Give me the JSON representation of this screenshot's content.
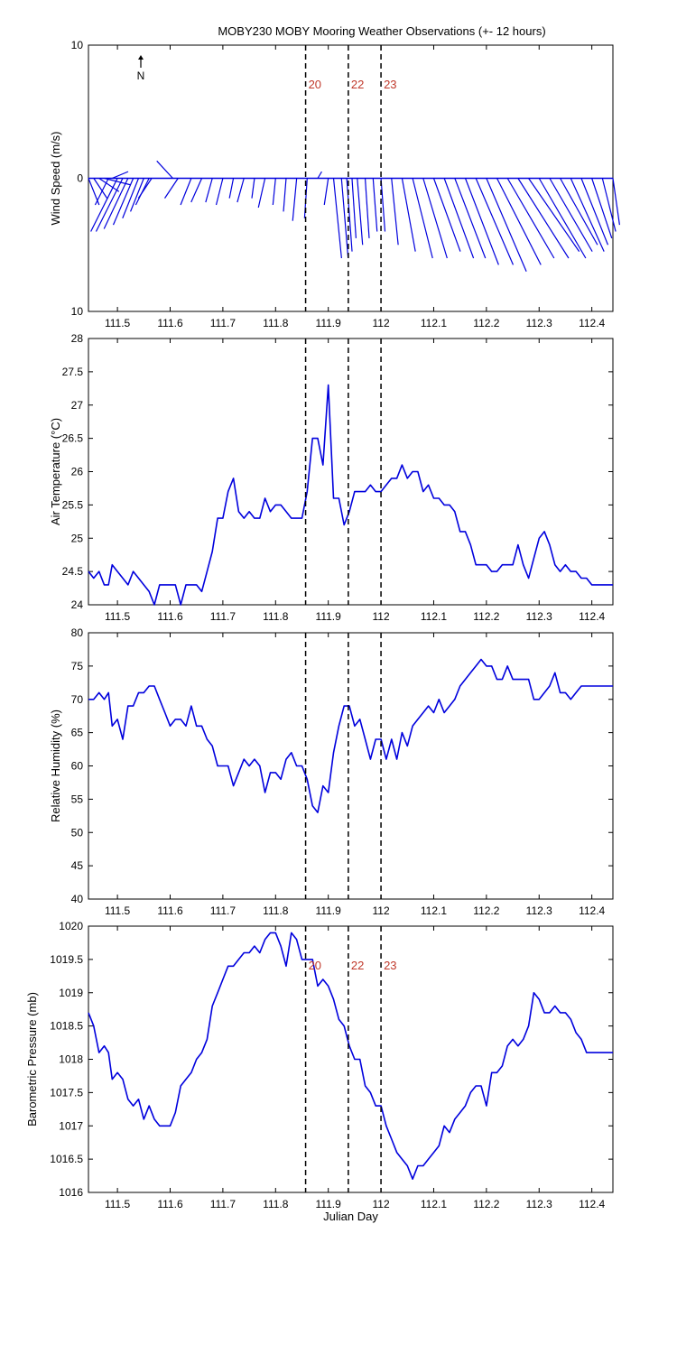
{
  "chart_data": [
    {
      "type": "line",
      "subtype": "wind-barb",
      "title": "MOBY230 MOBY Mooring Weather Observations (+- 12 hours)",
      "north_indicator": "N",
      "ylabel": "Wind Speed (m/s)",
      "ylim": [
        -10,
        10
      ],
      "ytick_labels": [
        "10",
        "0",
        "10"
      ],
      "xlim": [
        111.445,
        112.44
      ],
      "xticks": [
        111.5,
        111.6,
        111.7,
        111.8,
        111.9,
        112,
        112.1,
        112.2,
        112.3,
        112.4
      ],
      "xtick_labels": [
        "111.5",
        "111.6",
        "111.7",
        "111.8",
        "111.9",
        "112",
        "112.1",
        "112.2",
        "112.3",
        "112.4"
      ],
      "vlines": [
        111.857,
        111.938,
        112.0
      ],
      "vline_labels": [
        "20",
        "22",
        "23"
      ],
      "vectors": {
        "x": [
          111.445,
          111.455,
          111.465,
          111.475,
          111.483,
          111.49,
          111.5,
          111.51,
          111.52,
          111.53,
          111.54,
          111.55,
          111.56,
          111.565,
          111.605,
          111.615,
          111.64,
          111.66,
          111.68,
          111.7,
          111.72,
          111.74,
          111.76,
          111.78,
          111.8,
          111.82,
          111.84,
          111.86,
          111.88,
          111.9,
          111.91,
          111.925,
          111.935,
          111.945,
          111.955,
          111.97,
          111.985,
          112.0,
          112.02,
          112.04,
          112.06,
          112.08,
          112.1,
          112.12,
          112.14,
          112.16,
          112.18,
          112.2,
          112.22,
          112.24,
          112.26,
          112.28,
          112.3,
          112.32,
          112.34,
          112.36,
          112.38,
          112.4,
          112.42,
          112.44
        ],
        "u": [
          0.8,
          1.0,
          1.5,
          2.0,
          -1.0,
          1.2,
          -2.0,
          -2.0,
          -1.8,
          -1.5,
          -1.2,
          -1.0,
          -1.0,
          -1.0,
          -1.2,
          -1.0,
          -0.8,
          -0.8,
          -0.5,
          -0.5,
          -0.3,
          -0.5,
          -0.2,
          -0.5,
          -0.2,
          -0.2,
          -0.3,
          -0.2,
          0.3,
          -0.3,
          0.6,
          0.5,
          0.4,
          0.3,
          0.4,
          0.3,
          0.3,
          0.3,
          0.5,
          1.0,
          1.5,
          1.8,
          2.0,
          2.2,
          2.3,
          2.5,
          2.8,
          3.0,
          3.3,
          3.5,
          3.8,
          3.8,
          3.5,
          3.2,
          2.8,
          2.5,
          2.0,
          1.5,
          1.0,
          0.5
        ],
        "v": [
          -2.0,
          -1.5,
          -1.0,
          -0.5,
          -2.0,
          0.5,
          -4.0,
          -4.0,
          -3.8,
          -3.5,
          -3.0,
          -2.5,
          -2.0,
          -1.5,
          1.3,
          -1.5,
          -2.0,
          -1.8,
          -1.8,
          -2.0,
          -1.5,
          -1.8,
          -1.5,
          -2.2,
          -2.0,
          -2.5,
          -3.2,
          -3.0,
          0.5,
          -2.0,
          -6.0,
          -6.0,
          -5.5,
          -4.5,
          -5.0,
          -4.5,
          -4.0,
          -4.0,
          -5.0,
          -5.5,
          -6.0,
          -6.0,
          -5.5,
          -6.0,
          -6.0,
          -6.5,
          -6.5,
          -7.0,
          -6.5,
          -6.0,
          -6.0,
          -5.5,
          -6.0,
          -5.5,
          -5.0,
          -5.5,
          -5.0,
          -4.5,
          -4.0,
          -3.5
        ]
      }
    },
    {
      "type": "line",
      "ylabel": "Air Temperature (°C)",
      "ylim": [
        24,
        28
      ],
      "yticks": [
        24,
        24.5,
        25,
        25.5,
        26,
        26.5,
        27,
        27.5,
        28
      ],
      "ytick_labels": [
        "24",
        "24.5",
        "25",
        "25.5",
        "26",
        "26.5",
        "27",
        "27.5",
        "28"
      ],
      "xlim": [
        111.445,
        112.44
      ],
      "xticks": [
        111.5,
        111.6,
        111.7,
        111.8,
        111.9,
        112,
        112.1,
        112.2,
        112.3,
        112.4
      ],
      "xtick_labels": [
        "111.5",
        "111.6",
        "111.7",
        "111.8",
        "111.9",
        "112",
        "112.1",
        "112.2",
        "112.3",
        "112.4"
      ],
      "vlines": [
        111.857,
        111.938,
        112.0
      ],
      "series": [
        {
          "color": "#0000dd",
          "x": [
            111.445,
            111.455,
            111.465,
            111.475,
            111.483,
            111.49,
            111.5,
            111.51,
            111.52,
            111.53,
            111.54,
            111.55,
            111.56,
            111.57,
            111.58,
            111.59,
            111.6,
            111.61,
            111.62,
            111.63,
            111.64,
            111.65,
            111.66,
            111.67,
            111.68,
            111.69,
            111.7,
            111.71,
            111.72,
            111.73,
            111.74,
            111.75,
            111.76,
            111.77,
            111.78,
            111.79,
            111.8,
            111.81,
            111.82,
            111.83,
            111.84,
            111.85,
            111.86,
            111.87,
            111.88,
            111.89,
            111.9,
            111.91,
            111.915,
            111.92,
            111.93,
            111.94,
            111.95,
            111.96,
            111.97,
            111.98,
            111.99,
            112.0,
            112.01,
            112.02,
            112.03,
            112.04,
            112.05,
            112.06,
            112.07,
            112.08,
            112.09,
            112.1,
            112.11,
            112.12,
            112.13,
            112.14,
            112.15,
            112.16,
            112.17,
            112.18,
            112.19,
            112.2,
            112.21,
            112.22,
            112.23,
            112.24,
            112.25,
            112.26,
            112.27,
            112.28,
            112.29,
            112.3,
            112.31,
            112.32,
            112.33,
            112.34,
            112.35,
            112.36,
            112.37,
            112.38,
            112.39,
            112.4,
            112.41,
            112.42,
            112.43,
            112.44
          ],
          "values": [
            24.5,
            24.4,
            24.5,
            24.3,
            24.3,
            24.6,
            24.5,
            24.4,
            24.3,
            24.5,
            24.4,
            24.3,
            24.2,
            24.0,
            24.3,
            24.3,
            24.3,
            24.3,
            24.0,
            24.3,
            24.3,
            24.3,
            24.2,
            24.5,
            24.8,
            25.3,
            25.3,
            25.7,
            25.9,
            25.4,
            25.3,
            25.4,
            25.3,
            25.3,
            25.6,
            25.4,
            25.5,
            25.5,
            25.4,
            25.3,
            25.3,
            25.3,
            25.7,
            26.5,
            26.5,
            26.1,
            27.3,
            25.6,
            25.6,
            25.6,
            25.2,
            25.4,
            25.7,
            25.7,
            25.7,
            25.8,
            25.7,
            25.7,
            25.8,
            25.9,
            25.9,
            26.1,
            25.9,
            26.0,
            26.0,
            25.7,
            25.8,
            25.6,
            25.6,
            25.5,
            25.5,
            25.4,
            25.1,
            25.1,
            24.9,
            24.6,
            24.6,
            24.6,
            24.5,
            24.5,
            24.6,
            24.6,
            24.6,
            24.9,
            24.6,
            24.4,
            24.7,
            25.0,
            25.1,
            24.9,
            24.6,
            24.5,
            24.6,
            24.5,
            24.5,
            24.4,
            24.4,
            24.3,
            24.3,
            24.3,
            24.3,
            24.3
          ]
        }
      ]
    },
    {
      "type": "line",
      "ylabel": "Relative Humidity (%)",
      "ylim": [
        40,
        80
      ],
      "yticks": [
        40,
        45,
        50,
        55,
        60,
        65,
        70,
        75,
        80
      ],
      "ytick_labels": [
        "40",
        "45",
        "50",
        "55",
        "60",
        "65",
        "70",
        "75",
        "80"
      ],
      "xlim": [
        111.445,
        112.44
      ],
      "xticks": [
        111.5,
        111.6,
        111.7,
        111.8,
        111.9,
        112,
        112.1,
        112.2,
        112.3,
        112.4
      ],
      "xtick_labels": [
        "111.5",
        "111.6",
        "111.7",
        "111.8",
        "111.9",
        "112",
        "112.1",
        "112.2",
        "112.3",
        "112.4"
      ],
      "vlines": [
        111.857,
        111.938,
        112.0
      ],
      "series": [
        {
          "color": "#0000dd",
          "x": [
            111.445,
            111.455,
            111.465,
            111.475,
            111.483,
            111.49,
            111.5,
            111.51,
            111.52,
            111.53,
            111.54,
            111.55,
            111.56,
            111.57,
            111.58,
            111.59,
            111.6,
            111.61,
            111.62,
            111.63,
            111.64,
            111.65,
            111.66,
            111.67,
            111.68,
            111.69,
            111.7,
            111.71,
            111.72,
            111.73,
            111.74,
            111.75,
            111.76,
            111.77,
            111.78,
            111.79,
            111.8,
            111.81,
            111.82,
            111.83,
            111.84,
            111.85,
            111.86,
            111.87,
            111.88,
            111.89,
            111.9,
            111.91,
            111.92,
            111.93,
            111.94,
            111.95,
            111.96,
            111.97,
            111.98,
            111.99,
            112.0,
            112.01,
            112.02,
            112.03,
            112.04,
            112.05,
            112.06,
            112.07,
            112.08,
            112.09,
            112.1,
            112.11,
            112.12,
            112.13,
            112.14,
            112.15,
            112.16,
            112.17,
            112.18,
            112.19,
            112.2,
            112.21,
            112.22,
            112.23,
            112.24,
            112.25,
            112.26,
            112.27,
            112.28,
            112.29,
            112.3,
            112.31,
            112.32,
            112.33,
            112.34,
            112.35,
            112.36,
            112.37,
            112.38,
            112.39,
            112.4,
            112.41,
            112.42,
            112.43,
            112.44
          ],
          "values": [
            70,
            70,
            71,
            70,
            71,
            66,
            67,
            64,
            69,
            69,
            71,
            71,
            72,
            72,
            70,
            68,
            66,
            67,
            67,
            66,
            69,
            66,
            66,
            64,
            63,
            60,
            60,
            60,
            57,
            59,
            61,
            60,
            61,
            60,
            56,
            59,
            59,
            58,
            61,
            62,
            60,
            60,
            58,
            54,
            53,
            57,
            56,
            62,
            66,
            69,
            69,
            66,
            67,
            64,
            61,
            64,
            64,
            61,
            64,
            61,
            65,
            63,
            66,
            67,
            68,
            69,
            68,
            70,
            68,
            69,
            70,
            72,
            73,
            74,
            75,
            76,
            75,
            75,
            73,
            73,
            75,
            73,
            73,
            73,
            73,
            70,
            70,
            71,
            72,
            74,
            71,
            71,
            70,
            71,
            72,
            72,
            72,
            72,
            72,
            72,
            72
          ]
        }
      ]
    },
    {
      "type": "line",
      "xlabel": "Julian Day",
      "ylabel": "Barometric Pressure (mb)",
      "ylim": [
        1016,
        1020
      ],
      "yticks": [
        1016,
        1016.5,
        1017,
        1017.5,
        1018,
        1018.5,
        1019,
        1019.5,
        1020
      ],
      "ytick_labels": [
        "1016",
        "1016.5",
        "1017",
        "1017.5",
        "1018",
        "1018.5",
        "1019",
        "1019.5",
        "1020"
      ],
      "xlim": [
        111.445,
        112.44
      ],
      "xticks": [
        111.5,
        111.6,
        111.7,
        111.8,
        111.9,
        112,
        112.1,
        112.2,
        112.3,
        112.4
      ],
      "xtick_labels": [
        "111.5",
        "111.6",
        "111.7",
        "111.8",
        "111.9",
        "112",
        "112.1",
        "112.2",
        "112.3",
        "112.4"
      ],
      "vlines": [
        111.857,
        111.938,
        112.0
      ],
      "vline_labels": [
        "20",
        "22",
        "23"
      ],
      "series": [
        {
          "color": "#0000dd",
          "x": [
            111.445,
            111.455,
            111.465,
            111.475,
            111.483,
            111.49,
            111.5,
            111.51,
            111.52,
            111.53,
            111.54,
            111.55,
            111.56,
            111.57,
            111.58,
            111.59,
            111.6,
            111.61,
            111.62,
            111.63,
            111.64,
            111.65,
            111.66,
            111.67,
            111.68,
            111.69,
            111.7,
            111.71,
            111.72,
            111.73,
            111.74,
            111.75,
            111.76,
            111.77,
            111.78,
            111.79,
            111.8,
            111.81,
            111.82,
            111.83,
            111.84,
            111.85,
            111.86,
            111.87,
            111.88,
            111.89,
            111.9,
            111.91,
            111.92,
            111.93,
            111.94,
            111.95,
            111.96,
            111.97,
            111.98,
            111.99,
            112.0,
            112.01,
            112.02,
            112.03,
            112.04,
            112.05,
            112.06,
            112.07,
            112.08,
            112.09,
            112.1,
            112.11,
            112.12,
            112.13,
            112.14,
            112.15,
            112.16,
            112.17,
            112.18,
            112.19,
            112.2,
            112.21,
            112.22,
            112.23,
            112.24,
            112.25,
            112.26,
            112.27,
            112.28,
            112.29,
            112.3,
            112.31,
            112.32,
            112.33,
            112.34,
            112.35,
            112.36,
            112.37,
            112.38,
            112.39,
            112.4,
            112.41,
            112.42,
            112.43,
            112.44
          ],
          "values": [
            1018.7,
            1018.5,
            1018.1,
            1018.2,
            1018.1,
            1017.7,
            1017.8,
            1017.7,
            1017.4,
            1017.3,
            1017.4,
            1017.1,
            1017.3,
            1017.1,
            1017.0,
            1017.0,
            1017.0,
            1017.2,
            1017.6,
            1017.7,
            1017.8,
            1018.0,
            1018.1,
            1018.3,
            1018.8,
            1019.0,
            1019.2,
            1019.4,
            1019.4,
            1019.5,
            1019.6,
            1019.6,
            1019.7,
            1019.6,
            1019.8,
            1019.9,
            1019.9,
            1019.7,
            1019.4,
            1019.9,
            1019.8,
            1019.5,
            1019.5,
            1019.5,
            1019.1,
            1019.2,
            1019.1,
            1018.9,
            1018.6,
            1018.5,
            1018.2,
            1018.0,
            1018.0,
            1017.6,
            1017.5,
            1017.3,
            1017.3,
            1017.0,
            1016.8,
            1016.6,
            1016.5,
            1016.4,
            1016.2,
            1016.4,
            1016.4,
            1016.5,
            1016.6,
            1016.7,
            1017.0,
            1016.9,
            1017.1,
            1017.2,
            1017.3,
            1017.5,
            1017.6,
            1017.6,
            1017.3,
            1017.8,
            1017.8,
            1017.9,
            1018.2,
            1018.3,
            1018.2,
            1018.3,
            1018.5,
            1019.0,
            1018.9,
            1018.7,
            1018.7,
            1018.8,
            1018.7,
            1018.7,
            1018.6,
            1018.4,
            1018.3,
            1018.1,
            1018.1,
            1018.1,
            1018.1,
            1018.1,
            1018.1
          ]
        }
      ]
    }
  ]
}
